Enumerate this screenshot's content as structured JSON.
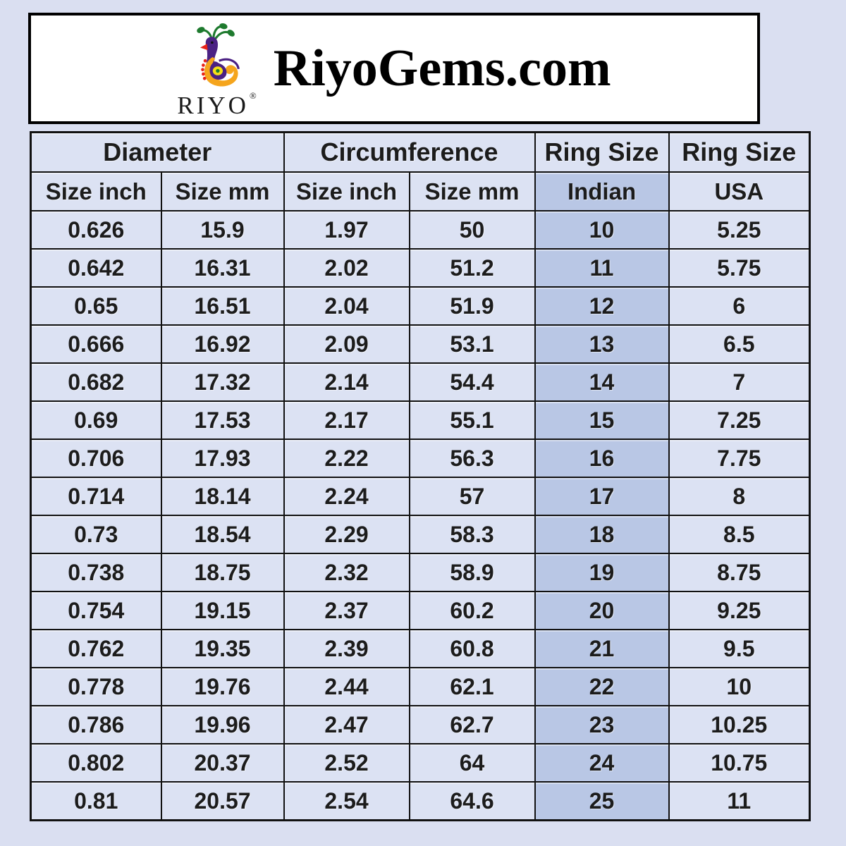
{
  "header": {
    "title": "RiyoGems.com",
    "logo_wordmark": "RIYO",
    "registered_mark": "®",
    "logo_icon": "peacock-icon"
  },
  "table": {
    "group_headers": [
      "Diameter",
      "Circumference",
      "Ring Size",
      "Ring Size"
    ],
    "sub_headers": [
      "Size inch",
      "Size mm",
      "Size inch",
      "Size mm",
      "Indian",
      "USA"
    ],
    "rows": [
      [
        "0.626",
        "15.9",
        "1.97",
        "50",
        "10",
        "5.25"
      ],
      [
        "0.642",
        "16.31",
        "2.02",
        "51.2",
        "11",
        "5.75"
      ],
      [
        "0.65",
        "16.51",
        "2.04",
        "51.9",
        "12",
        "6"
      ],
      [
        "0.666",
        "16.92",
        "2.09",
        "53.1",
        "13",
        "6.5"
      ],
      [
        "0.682",
        "17.32",
        "2.14",
        "54.4",
        "14",
        "7"
      ],
      [
        "0.69",
        "17.53",
        "2.17",
        "55.1",
        "15",
        "7.25"
      ],
      [
        "0.706",
        "17.93",
        "2.22",
        "56.3",
        "16",
        "7.75"
      ],
      [
        "0.714",
        "18.14",
        "2.24",
        "57",
        "17",
        "8"
      ],
      [
        "0.73",
        "18.54",
        "2.29",
        "58.3",
        "18",
        "8.5"
      ],
      [
        "0.738",
        "18.75",
        "2.32",
        "58.9",
        "19",
        "8.75"
      ],
      [
        "0.754",
        "19.15",
        "2.37",
        "60.2",
        "20",
        "9.25"
      ],
      [
        "0.762",
        "19.35",
        "2.39",
        "60.8",
        "21",
        "9.5"
      ],
      [
        "0.778",
        "19.76",
        "2.44",
        "62.1",
        "22",
        "10"
      ],
      [
        "0.786",
        "19.96",
        "2.47",
        "62.7",
        "23",
        "10.25"
      ],
      [
        "0.802",
        "20.37",
        "2.52",
        "64",
        "24",
        "10.75"
      ],
      [
        "0.81",
        "20.57",
        "2.54",
        "64.6",
        "25",
        "11"
      ]
    ]
  },
  "chart_data": {
    "type": "table",
    "title": "RiyoGems.com ring size conversion chart",
    "columns": [
      "Diameter Size inch",
      "Diameter Size mm",
      "Circumference Size inch",
      "Circumference Size mm",
      "Ring Size Indian",
      "Ring Size USA"
    ],
    "rows": [
      [
        0.626,
        15.9,
        1.97,
        50,
        10,
        5.25
      ],
      [
        0.642,
        16.31,
        2.02,
        51.2,
        11,
        5.75
      ],
      [
        0.65,
        16.51,
        2.04,
        51.9,
        12,
        6
      ],
      [
        0.666,
        16.92,
        2.09,
        53.1,
        13,
        6.5
      ],
      [
        0.682,
        17.32,
        2.14,
        54.4,
        14,
        7
      ],
      [
        0.69,
        17.53,
        2.17,
        55.1,
        15,
        7.25
      ],
      [
        0.706,
        17.93,
        2.22,
        56.3,
        16,
        7.75
      ],
      [
        0.714,
        18.14,
        2.24,
        57,
        17,
        8
      ],
      [
        0.73,
        18.54,
        2.29,
        58.3,
        18,
        8.5
      ],
      [
        0.738,
        18.75,
        2.32,
        58.9,
        19,
        8.75
      ],
      [
        0.754,
        19.15,
        2.37,
        60.2,
        20,
        9.25
      ],
      [
        0.762,
        19.35,
        2.39,
        60.8,
        21,
        9.5
      ],
      [
        0.778,
        19.76,
        2.44,
        62.1,
        22,
        10
      ],
      [
        0.786,
        19.96,
        2.47,
        62.7,
        23,
        10.25
      ],
      [
        0.802,
        20.37,
        2.52,
        64,
        24,
        10.75
      ],
      [
        0.81,
        20.57,
        2.54,
        64.6,
        25,
        11
      ]
    ],
    "highlighted_column": "Ring Size Indian"
  },
  "colors": {
    "page_background": "#dadff1",
    "header_background": "#ffffff",
    "cell_background": "#dce2f3",
    "indian_column_background": "#b9c7e5",
    "border": "#111111",
    "text": "#1c1c1c",
    "logo_purple": "#4b2183",
    "logo_orange": "#f5a51d",
    "logo_green": "#1e7a2e",
    "logo_red": "#e8231a",
    "logo_yellow": "#f7e017"
  }
}
